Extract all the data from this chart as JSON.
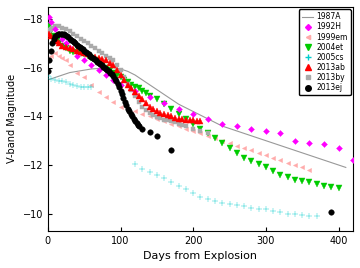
{
  "title": "",
  "xlabel": "Days from Explosion",
  "ylabel": "V-band Magnitude",
  "xlim": [
    0,
    420
  ],
  "ylim_top": -18.5,
  "ylim_bottom": -9.3,
  "background_color": "#ffffff",
  "sn1987A_line": {
    "color": "#999999",
    "x": [
      0,
      10,
      20,
      30,
      40,
      50,
      60,
      70,
      80,
      90,
      100,
      110,
      120,
      130,
      140,
      150,
      160,
      170,
      180,
      190,
      200,
      210,
      220,
      230,
      240,
      250,
      260,
      270,
      280,
      290,
      300,
      310,
      320,
      330,
      340,
      350,
      360,
      370,
      380,
      390,
      400,
      410
    ],
    "y": [
      -15.5,
      -15.6,
      -15.7,
      -15.8,
      -15.85,
      -15.9,
      -15.95,
      -15.97,
      -16.0,
      -16.0,
      -15.95,
      -15.85,
      -15.7,
      -15.5,
      -15.3,
      -15.1,
      -14.9,
      -14.7,
      -14.5,
      -14.35,
      -14.2,
      -14.05,
      -13.9,
      -13.75,
      -13.6,
      -13.5,
      -13.4,
      -13.3,
      -13.2,
      -13.1,
      -13.0,
      -12.9,
      -12.8,
      -12.7,
      -12.6,
      -12.5,
      -12.4,
      -12.3,
      -12.2,
      -12.1,
      -12.0,
      -11.9
    ]
  },
  "sn1992H": {
    "color": "#ff00ff",
    "marker": "D",
    "ms": 3,
    "data": [
      [
        2,
        -18.1
      ],
      [
        5,
        -17.9
      ],
      [
        10,
        -17.6
      ],
      [
        15,
        -17.4
      ],
      [
        20,
        -17.2
      ],
      [
        25,
        -17.0
      ],
      [
        30,
        -16.8
      ],
      [
        40,
        -16.5
      ],
      [
        50,
        -16.3
      ],
      [
        60,
        -16.1
      ],
      [
        70,
        -15.9
      ],
      [
        80,
        -15.7
      ],
      [
        90,
        -15.5
      ],
      [
        100,
        -15.3
      ],
      [
        120,
        -15.05
      ],
      [
        140,
        -14.8
      ],
      [
        160,
        -14.55
      ],
      [
        180,
        -14.3
      ],
      [
        200,
        -14.1
      ],
      [
        220,
        -13.9
      ],
      [
        240,
        -13.7
      ],
      [
        260,
        -13.6
      ],
      [
        280,
        -13.5
      ],
      [
        300,
        -13.4
      ],
      [
        320,
        -13.3
      ],
      [
        340,
        -13.0
      ],
      [
        360,
        -12.9
      ],
      [
        380,
        -12.85
      ],
      [
        400,
        -12.7
      ],
      [
        420,
        -12.2
      ]
    ]
  },
  "sn1999em": {
    "color": "#ffaaaa",
    "marker": "<",
    "ms": 3,
    "data": [
      [
        0,
        -16.3
      ],
      [
        5,
        -16.5
      ],
      [
        10,
        -16.6
      ],
      [
        15,
        -16.5
      ],
      [
        20,
        -16.4
      ],
      [
        25,
        -16.3
      ],
      [
        30,
        -16.1
      ],
      [
        40,
        -15.8
      ],
      [
        50,
        -15.6
      ],
      [
        60,
        -15.3
      ],
      [
        70,
        -15.0
      ],
      [
        80,
        -14.8
      ],
      [
        90,
        -14.6
      ],
      [
        100,
        -14.4
      ],
      [
        110,
        -14.3
      ],
      [
        120,
        -14.2
      ],
      [
        130,
        -14.1
      ],
      [
        140,
        -14.0
      ],
      [
        150,
        -13.9
      ],
      [
        160,
        -13.8
      ],
      [
        170,
        -13.7
      ],
      [
        180,
        -13.6
      ],
      [
        190,
        -13.5
      ],
      [
        200,
        -13.4
      ],
      [
        210,
        -13.3
      ],
      [
        220,
        -13.2
      ],
      [
        230,
        -13.1
      ],
      [
        240,
        -13.0
      ],
      [
        250,
        -12.9
      ],
      [
        260,
        -12.8
      ],
      [
        270,
        -12.7
      ],
      [
        280,
        -12.6
      ],
      [
        290,
        -12.5
      ],
      [
        300,
        -12.4
      ],
      [
        310,
        -12.3
      ],
      [
        320,
        -12.2
      ],
      [
        330,
        -12.1
      ],
      [
        340,
        -12.0
      ],
      [
        350,
        -11.9
      ],
      [
        360,
        -11.8
      ]
    ]
  },
  "sn2004et": {
    "color": "#00cc00",
    "marker": "v",
    "ms": 4,
    "data": [
      [
        2,
        -17.7
      ],
      [
        5,
        -17.5
      ],
      [
        8,
        -17.3
      ],
      [
        12,
        -17.1
      ],
      [
        16,
        -17.0
      ],
      [
        20,
        -16.9
      ],
      [
        25,
        -16.8
      ],
      [
        30,
        -16.7
      ],
      [
        35,
        -16.65
      ],
      [
        40,
        -16.6
      ],
      [
        45,
        -16.6
      ],
      [
        50,
        -16.55
      ],
      [
        55,
        -16.5
      ],
      [
        60,
        -16.4
      ],
      [
        65,
        -16.3
      ],
      [
        70,
        -16.2
      ],
      [
        75,
        -16.1
      ],
      [
        80,
        -16.0
      ],
      [
        85,
        -15.9
      ],
      [
        90,
        -15.8
      ],
      [
        95,
        -15.7
      ],
      [
        100,
        -15.6
      ],
      [
        105,
        -15.5
      ],
      [
        110,
        -15.4
      ],
      [
        115,
        -15.3
      ],
      [
        120,
        -15.2
      ],
      [
        125,
        -15.15
      ],
      [
        130,
        -15.05
      ],
      [
        135,
        -14.95
      ],
      [
        140,
        -14.85
      ],
      [
        150,
        -14.7
      ],
      [
        160,
        -14.5
      ],
      [
        170,
        -14.3
      ],
      [
        180,
        -14.1
      ],
      [
        190,
        -13.9
      ],
      [
        200,
        -13.7
      ],
      [
        210,
        -13.5
      ],
      [
        220,
        -13.3
      ],
      [
        230,
        -13.1
      ],
      [
        240,
        -12.9
      ],
      [
        250,
        -12.7
      ],
      [
        260,
        -12.5
      ],
      [
        270,
        -12.3
      ],
      [
        280,
        -12.15
      ],
      [
        290,
        -12.05
      ],
      [
        300,
        -11.9
      ],
      [
        310,
        -11.75
      ],
      [
        320,
        -11.6
      ],
      [
        330,
        -11.5
      ],
      [
        340,
        -11.4
      ],
      [
        350,
        -11.35
      ],
      [
        360,
        -11.3
      ],
      [
        370,
        -11.2
      ],
      [
        380,
        -11.15
      ],
      [
        390,
        -11.1
      ],
      [
        400,
        -11.05
      ]
    ]
  },
  "sn2005cs": {
    "color": "#00cccc",
    "marker": "+",
    "ms": 4,
    "data": [
      [
        0,
        -15.65
      ],
      [
        5,
        -15.55
      ],
      [
        10,
        -15.5
      ],
      [
        15,
        -15.45
      ],
      [
        20,
        -15.45
      ],
      [
        25,
        -15.4
      ],
      [
        30,
        -15.35
      ],
      [
        35,
        -15.3
      ],
      [
        40,
        -15.25
      ],
      [
        45,
        -15.2
      ],
      [
        50,
        -15.2
      ],
      [
        55,
        -15.2
      ],
      [
        60,
        -15.2
      ],
      [
        120,
        -12.05
      ],
      [
        130,
        -11.85
      ],
      [
        140,
        -11.7
      ],
      [
        150,
        -11.6
      ],
      [
        160,
        -11.45
      ],
      [
        170,
        -11.3
      ],
      [
        180,
        -11.15
      ],
      [
        190,
        -11.0
      ],
      [
        200,
        -10.85
      ],
      [
        210,
        -10.7
      ],
      [
        220,
        -10.6
      ],
      [
        230,
        -10.5
      ],
      [
        240,
        -10.45
      ],
      [
        250,
        -10.4
      ],
      [
        260,
        -10.35
      ],
      [
        270,
        -10.3
      ],
      [
        280,
        -10.25
      ],
      [
        290,
        -10.2
      ],
      [
        300,
        -10.18
      ],
      [
        310,
        -10.1
      ],
      [
        320,
        -10.05
      ],
      [
        330,
        -10.0
      ],
      [
        340,
        -9.97
      ],
      [
        350,
        -9.95
      ],
      [
        360,
        -9.92
      ],
      [
        370,
        -9.9
      ]
    ]
  },
  "sn2013ab": {
    "color": "#ff0000",
    "marker": "^",
    "ms": 4,
    "data": [
      [
        2,
        -17.4
      ],
      [
        5,
        -17.3
      ],
      [
        8,
        -17.2
      ],
      [
        12,
        -17.1
      ],
      [
        16,
        -17.0
      ],
      [
        20,
        -16.9
      ],
      [
        25,
        -16.85
      ],
      [
        30,
        -16.8
      ],
      [
        35,
        -16.75
      ],
      [
        40,
        -16.7
      ],
      [
        45,
        -16.65
      ],
      [
        50,
        -16.6
      ],
      [
        55,
        -16.55
      ],
      [
        60,
        -16.5
      ],
      [
        65,
        -16.45
      ],
      [
        70,
        -16.4
      ],
      [
        75,
        -16.35
      ],
      [
        80,
        -16.3
      ],
      [
        85,
        -16.2
      ],
      [
        90,
        -16.1
      ],
      [
        95,
        -15.9
      ],
      [
        100,
        -15.7
      ],
      [
        105,
        -15.5
      ],
      [
        110,
        -15.3
      ],
      [
        115,
        -15.15
      ],
      [
        120,
        -15.0
      ],
      [
        125,
        -14.85
      ],
      [
        130,
        -14.7
      ],
      [
        135,
        -14.55
      ],
      [
        140,
        -14.4
      ],
      [
        145,
        -14.3
      ],
      [
        150,
        -14.2
      ],
      [
        155,
        -14.15
      ],
      [
        160,
        -14.1
      ],
      [
        165,
        -14.05
      ],
      [
        170,
        -14.0
      ],
      [
        175,
        -13.95
      ],
      [
        180,
        -13.9
      ],
      [
        185,
        -13.9
      ],
      [
        190,
        -13.87
      ],
      [
        195,
        -13.85
      ],
      [
        200,
        -13.83
      ],
      [
        205,
        -13.82
      ],
      [
        210,
        -13.8
      ]
    ]
  },
  "sn2013by": {
    "color": "#aaaaaa",
    "marker": "s",
    "ms": 3,
    "data": [
      [
        1,
        -17.5
      ],
      [
        3,
        -17.55
      ],
      [
        5,
        -17.6
      ],
      [
        7,
        -17.65
      ],
      [
        10,
        -17.7
      ],
      [
        15,
        -17.7
      ],
      [
        20,
        -17.65
      ],
      [
        25,
        -17.6
      ],
      [
        30,
        -17.5
      ],
      [
        35,
        -17.4
      ],
      [
        40,
        -17.3
      ],
      [
        45,
        -17.2
      ],
      [
        50,
        -17.1
      ],
      [
        55,
        -17.0
      ],
      [
        60,
        -16.9
      ],
      [
        65,
        -16.8
      ],
      [
        70,
        -16.7
      ],
      [
        75,
        -16.6
      ],
      [
        80,
        -16.5
      ],
      [
        85,
        -16.4
      ],
      [
        90,
        -16.3
      ],
      [
        95,
        -16.1
      ],
      [
        100,
        -15.9
      ],
      [
        105,
        -15.6
      ],
      [
        110,
        -15.35
      ],
      [
        115,
        -15.1
      ],
      [
        120,
        -14.85
      ],
      [
        125,
        -14.6
      ],
      [
        130,
        -14.4
      ],
      [
        135,
        -14.25
      ],
      [
        140,
        -14.15
      ],
      [
        145,
        -14.05
      ],
      [
        150,
        -13.98
      ],
      [
        155,
        -13.92
      ],
      [
        160,
        -13.87
      ],
      [
        165,
        -13.83
      ],
      [
        170,
        -13.8
      ],
      [
        175,
        -13.75
      ],
      [
        180,
        -13.7
      ],
      [
        185,
        -13.65
      ],
      [
        190,
        -13.6
      ],
      [
        200,
        -13.5
      ],
      [
        210,
        -13.4
      ],
      [
        220,
        -13.3
      ]
    ]
  },
  "sn2013ej": {
    "color": "#000000",
    "marker": "o",
    "ms": 4,
    "data": [
      [
        0,
        -15.85
      ],
      [
        2,
        -16.3
      ],
      [
        4,
        -16.7
      ],
      [
        6,
        -17.0
      ],
      [
        8,
        -17.2
      ],
      [
        10,
        -17.3
      ],
      [
        12,
        -17.35
      ],
      [
        14,
        -17.4
      ],
      [
        16,
        -17.4
      ],
      [
        18,
        -17.4
      ],
      [
        20,
        -17.4
      ],
      [
        22,
        -17.38
      ],
      [
        24,
        -17.35
      ],
      [
        26,
        -17.3
      ],
      [
        28,
        -17.25
      ],
      [
        30,
        -17.2
      ],
      [
        32,
        -17.15
      ],
      [
        34,
        -17.1
      ],
      [
        36,
        -17.05
      ],
      [
        38,
        -17.0
      ],
      [
        40,
        -16.95
      ],
      [
        42,
        -16.9
      ],
      [
        44,
        -16.85
      ],
      [
        46,
        -16.8
      ],
      [
        48,
        -16.75
      ],
      [
        50,
        -16.7
      ],
      [
        52,
        -16.65
      ],
      [
        54,
        -16.6
      ],
      [
        56,
        -16.55
      ],
      [
        58,
        -16.5
      ],
      [
        60,
        -16.45
      ],
      [
        62,
        -16.4
      ],
      [
        64,
        -16.35
      ],
      [
        66,
        -16.3
      ],
      [
        68,
        -16.25
      ],
      [
        70,
        -16.2
      ],
      [
        72,
        -16.15
      ],
      [
        74,
        -16.1
      ],
      [
        76,
        -16.05
      ],
      [
        78,
        -16.0
      ],
      [
        80,
        -15.95
      ],
      [
        82,
        -15.9
      ],
      [
        84,
        -15.85
      ],
      [
        86,
        -15.8
      ],
      [
        88,
        -15.75
      ],
      [
        90,
        -15.65
      ],
      [
        92,
        -15.55
      ],
      [
        94,
        -15.45
      ],
      [
        96,
        -15.35
      ],
      [
        98,
        -15.2
      ],
      [
        100,
        -15.05
      ],
      [
        102,
        -14.9
      ],
      [
        104,
        -14.75
      ],
      [
        106,
        -14.6
      ],
      [
        108,
        -14.45
      ],
      [
        110,
        -14.3
      ],
      [
        112,
        -14.2
      ],
      [
        114,
        -14.1
      ],
      [
        116,
        -14.0
      ],
      [
        118,
        -13.9
      ],
      [
        120,
        -13.8
      ],
      [
        122,
        -13.72
      ],
      [
        124,
        -13.65
      ],
      [
        126,
        -13.6
      ],
      [
        130,
        -13.5
      ],
      [
        140,
        -13.35
      ],
      [
        150,
        -13.2
      ],
      [
        170,
        -12.6
      ],
      [
        390,
        -10.05
      ]
    ]
  },
  "legend_entries": [
    {
      "label": "1987A",
      "color": "#999999",
      "marker": null,
      "linestyle": "-",
      "ms": 3
    },
    {
      "label": "1992H",
      "color": "#ff00ff",
      "marker": "D",
      "linestyle": "none",
      "ms": 3
    },
    {
      "label": "1999em",
      "color": "#ffaaaa",
      "marker": "<",
      "linestyle": "none",
      "ms": 3
    },
    {
      "label": "2004et",
      "color": "#00cc00",
      "marker": "v",
      "linestyle": "none",
      "ms": 4
    },
    {
      "label": "2005cs",
      "color": "#00cccc",
      "marker": "+",
      "linestyle": "none",
      "ms": 4
    },
    {
      "label": "2013ab",
      "color": "#ff0000",
      "marker": "^",
      "linestyle": "none",
      "ms": 4
    },
    {
      "label": "2013by",
      "color": "#aaaaaa",
      "marker": "s",
      "linestyle": "none",
      "ms": 3
    },
    {
      "label": "2013ej",
      "color": "#000000",
      "marker": "o",
      "linestyle": "none",
      "ms": 4
    }
  ]
}
